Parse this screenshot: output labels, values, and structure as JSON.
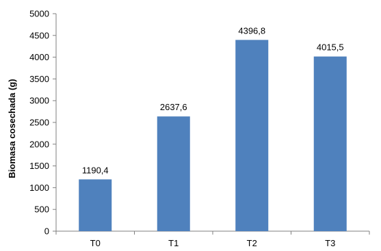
{
  "chart_data": {
    "type": "bar",
    "categories": [
      "T0",
      "T1",
      "T2",
      "T3"
    ],
    "values": [
      1190.4,
      2637.6,
      4396.8,
      4015.5
    ],
    "data_labels": [
      "1190,4",
      "2637,6",
      "4396,8",
      "4015,5"
    ],
    "title": "",
    "xlabel": "",
    "ylabel": "Biomasa cosechada (g)",
    "ylim": [
      0,
      5000
    ],
    "yticks": [
      0,
      500,
      1000,
      1500,
      2000,
      2500,
      3000,
      3500,
      4000,
      4500,
      5000
    ],
    "grid": false,
    "legend": "none",
    "bar_color": "#4F81BD"
  }
}
